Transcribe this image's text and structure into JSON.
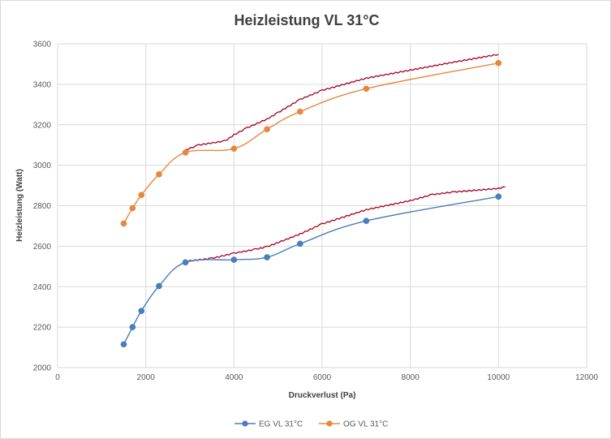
{
  "chart_data": {
    "type": "scatter",
    "title": "Heizleistung  VL 31°C",
    "xlabel": "Druckverlust (Pa)",
    "ylabel": "Heizleistung (Watt)",
    "xlim": [
      0,
      12000
    ],
    "ylim": [
      2000,
      3600
    ],
    "xticks": [
      0,
      2000,
      4000,
      6000,
      8000,
      10000,
      12000
    ],
    "yticks": [
      2000,
      2200,
      2400,
      2600,
      2800,
      3000,
      3200,
      3400,
      3600
    ],
    "grid": true,
    "legend_position": "bottom",
    "series": [
      {
        "name": "EG VL 31°C",
        "color": "#4a7ebb",
        "x": [
          1500,
          1700,
          1900,
          2300,
          2900,
          4000,
          4750,
          5500,
          7000,
          10000
        ],
        "y": [
          2115,
          2200,
          2280,
          2403,
          2520,
          2533,
          2545,
          2612,
          2725,
          2845
        ]
      },
      {
        "name": "OG VL 31°C",
        "color": "#e7873e",
        "x": [
          1500,
          1700,
          1900,
          2300,
          2900,
          4000,
          4750,
          5500,
          7000,
          10000
        ],
        "y": [
          2712,
          2788,
          2853,
          2955,
          3063,
          3082,
          3178,
          3265,
          3378,
          3505
        ]
      }
    ],
    "overlay_lines": [
      {
        "color": "#a50021",
        "x": [
          2900,
          3500,
          4000,
          4500,
          4750,
          5500,
          6000,
          7000,
          8000,
          8500,
          9000,
          10000,
          10150
        ],
        "y": [
          2525,
          2540,
          2565,
          2585,
          2597,
          2660,
          2710,
          2780,
          2825,
          2855,
          2868,
          2885,
          2893
        ]
      },
      {
        "color": "#a50021",
        "x": [
          2900,
          3200,
          3800,
          4000,
          4300,
          4750,
          5000,
          5500,
          6000,
          7000,
          8000,
          9000,
          10000
        ],
        "y": [
          3075,
          3100,
          3120,
          3150,
          3185,
          3228,
          3260,
          3325,
          3370,
          3430,
          3470,
          3510,
          3548
        ]
      }
    ]
  }
}
